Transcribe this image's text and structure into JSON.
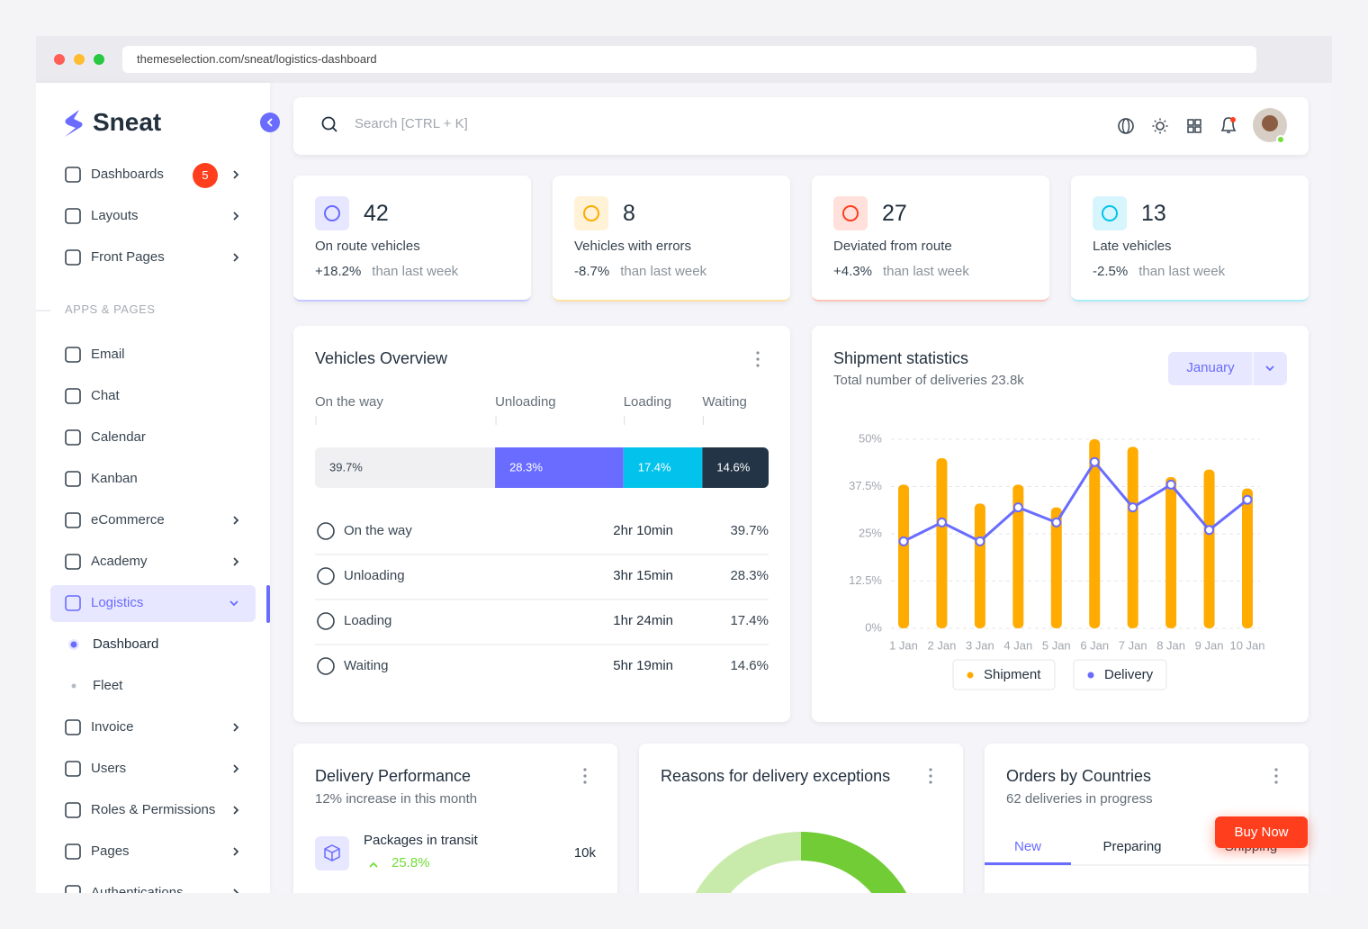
{
  "browser": {
    "url": "themeselection.com/sneat/logistics-dashboard"
  },
  "sidebar": {
    "brand": "Sneat",
    "items": [
      "Dashboards",
      "Layouts",
      "Front Pages"
    ],
    "badge": "5",
    "section": "APPS & PAGES",
    "apps": [
      "Email",
      "Chat",
      "Calendar",
      "Kanban",
      "eCommerce",
      "Academy",
      "Logistics"
    ],
    "logistics_sub": [
      "Dashboard",
      "Fleet"
    ],
    "more": [
      "Invoice",
      "Users",
      "Roles & Permissions",
      "Pages",
      "Authentications"
    ]
  },
  "topbar": {
    "search_placeholder": "Search [CTRL + K]"
  },
  "stats": [
    {
      "value": "42",
      "label": "On route vehicles",
      "change": "+18.2%",
      "note": "than last week"
    },
    {
      "value": "8",
      "label": "Vehicles with errors",
      "change": "-8.7%",
      "note": "than last week"
    },
    {
      "value": "27",
      "label": "Deviated from route",
      "change": "+4.3%",
      "note": "than last week"
    },
    {
      "value": "13",
      "label": "Late vehicles",
      "change": "-2.5%",
      "note": "than last week"
    }
  ],
  "chart_data": [
    {
      "type": "stacked-bar",
      "title": "Vehicles Overview",
      "categories": [
        "On the way",
        "Unloading",
        "Loading",
        "Waiting"
      ],
      "values": [
        39.7,
        28.3,
        17.4,
        14.6
      ],
      "value_labels": [
        "39.7%",
        "28.3%",
        "17.4%",
        "14.6%"
      ],
      "colors": [
        "#f0f0f3",
        "#696cff",
        "#03c3ec",
        "#233446"
      ],
      "xlim": [
        0,
        100
      ],
      "times": [
        "2hr 10min",
        "3hr 15min",
        "1hr 24min",
        "5hr 19min"
      ]
    },
    {
      "type": "bar",
      "title": "Shipment statistics",
      "subtitle": "Total number of deliveries 23.8k",
      "filter": "January",
      "categories": [
        "1 Jan",
        "2 Jan",
        "3 Jan",
        "4 Jan",
        "5 Jan",
        "6 Jan",
        "7 Jan",
        "8 Jan",
        "9 Jan",
        "10 Jan"
      ],
      "ylim": [
        0,
        50
      ],
      "yticks": [
        {
          "value": 0,
          "label": "0%"
        },
        {
          "value": 12.5,
          "label": "12.5%"
        },
        {
          "value": 25,
          "label": "25%"
        },
        {
          "value": 37.5,
          "label": "37.5%"
        },
        {
          "value": 50,
          "label": "50%"
        }
      ],
      "grid": true,
      "series": [
        {
          "name": "Shipment",
          "type": "bar",
          "color": "#ffab00",
          "values": [
            38,
            45,
            33,
            38,
            32,
            50,
            48,
            40,
            42,
            37
          ]
        },
        {
          "name": "Delivery",
          "type": "line",
          "color": "#696cff",
          "values": [
            23,
            28,
            23,
            32,
            28,
            44,
            32,
            38,
            26,
            34
          ]
        }
      ]
    }
  ],
  "delivery_performance": {
    "title": "Delivery Performance",
    "subtitle": "12% increase in this month",
    "items": [
      {
        "label": "Packages in transit",
        "change": "25.8%",
        "value": "10k"
      }
    ]
  },
  "delivery_exceptions": {
    "title": "Reasons for delivery exceptions"
  },
  "orders_by_countries": {
    "title": "Orders by Countries",
    "subtitle": "62 deliveries in progress",
    "tabs": [
      "New",
      "Preparing",
      "Shipping"
    ]
  },
  "buy_now": "Buy Now"
}
